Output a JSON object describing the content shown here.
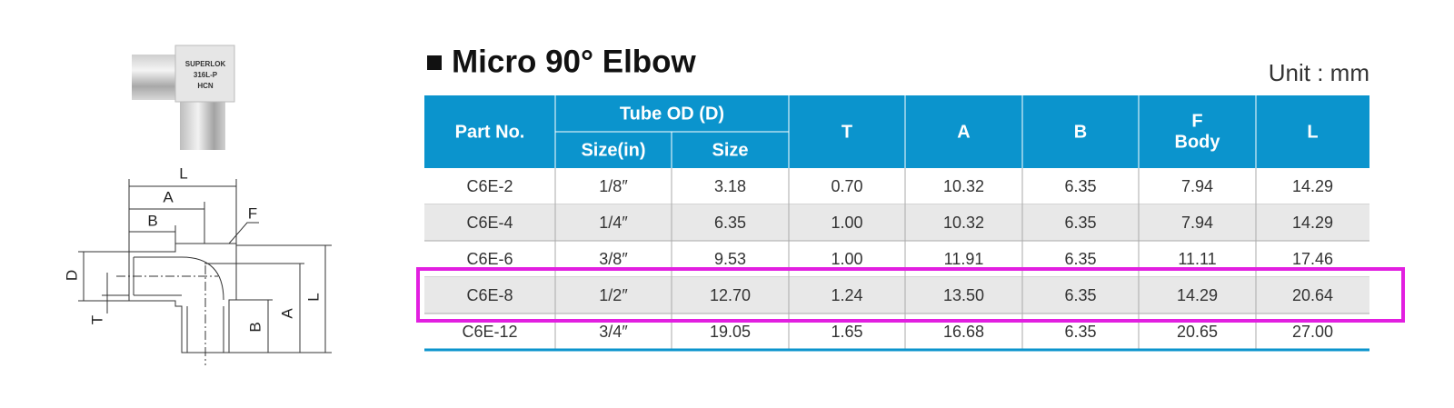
{
  "product_image": {
    "lines": [
      "SUPERLOK",
      "316L-P",
      "HCN"
    ]
  },
  "diagram": {
    "labels": {
      "top_L": "L",
      "top_A": "A",
      "top_B": "B",
      "F": "F",
      "D": "D",
      "T": "T",
      "right_B": "B",
      "right_A": "A",
      "right_L": "L"
    }
  },
  "header": {
    "title": "Micro 90° Elbow",
    "unit": "Unit : mm"
  },
  "table": {
    "columns": {
      "part_no": "Part No.",
      "tube_od": "Tube OD (D)",
      "size_in": "Size(in)",
      "size": "Size",
      "T": "T",
      "A": "A",
      "B": "B",
      "F": [
        "F",
        "Body"
      ],
      "L": "L"
    },
    "rows": [
      [
        "C6E-2",
        "1/8″",
        "3.18",
        "0.70",
        "10.32",
        "6.35",
        "7.94",
        "14.29"
      ],
      [
        "C6E-4",
        "1/4″",
        "6.35",
        "1.00",
        "10.32",
        "6.35",
        "7.94",
        "14.29"
      ],
      [
        "C6E-6",
        "3/8″",
        "9.53",
        "1.00",
        "11.91",
        "6.35",
        "11.11",
        "17.46"
      ],
      [
        "C6E-8",
        "1/2″",
        "12.70",
        "1.24",
        "13.50",
        "6.35",
        "14.29",
        "20.64"
      ],
      [
        "C6E-12",
        "3/4″",
        "19.05",
        "1.65",
        "16.68",
        "6.35",
        "20.65",
        "27.00"
      ]
    ]
  }
}
